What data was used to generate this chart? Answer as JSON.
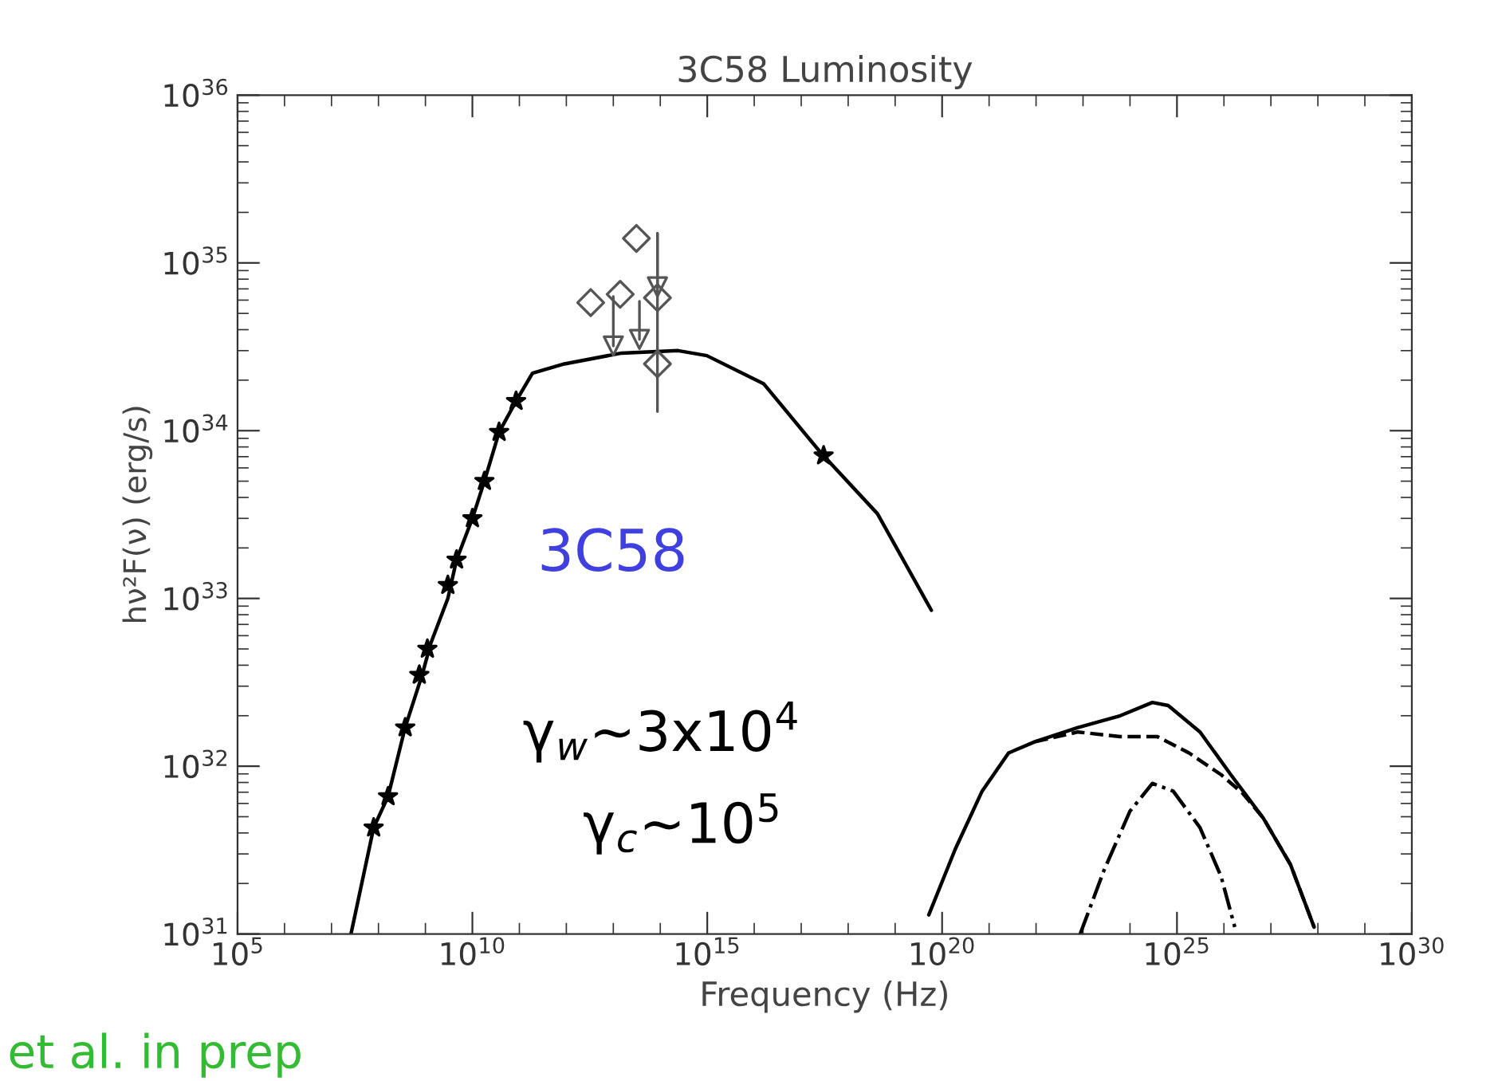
{
  "chart_data": {
    "type": "line",
    "title": "3C58 Luminosity",
    "xlabel": "Frequency (Hz)",
    "ylabel": "hν²F(ν) (erg/s)",
    "log": "xy",
    "grid": false,
    "legend": false,
    "xlim": [
      100000.0,
      1e+30
    ],
    "ylim": [
      1e+31,
      1e+36
    ],
    "xticks": [
      {
        "value": 100000.0,
        "label": "10$^{5}$"
      },
      {
        "value": 10000000000.0,
        "label": "10$^{10}$"
      },
      {
        "value": 1000000000000000.0,
        "label": "10$^{15}$"
      },
      {
        "value": 1e+20,
        "label": "10$^{20}$"
      },
      {
        "value": 1e+25,
        "label": "10$^{25}$"
      },
      {
        "value": 1e+30,
        "label": "10$^{30}$"
      }
    ],
    "yticks": [
      {
        "value": 1e+31,
        "label": "10$^{31}$"
      },
      {
        "value": 1e+32,
        "label": "10$^{32}$"
      },
      {
        "value": 1e+33,
        "label": "10$^{33}$"
      },
      {
        "value": 1e+34,
        "label": "10$^{34}$"
      },
      {
        "value": 1e+35,
        "label": "10$^{35}$"
      },
      {
        "value": 1e+36,
        "label": "10$^{36}$"
      }
    ],
    "series": [
      {
        "color": "#000000",
        "line_style": "solid",
        "marker": "none",
        "x": [
          26000000.0,
          79000000.0,
          160000000.0,
          370000000.0,
          850000000.0,
          1300000000.0,
          3000000000.0,
          4600000000.0,
          10000000000.0,
          18000000000.0,
          37000000000.0,
          85000000000.0,
          190000000000.0,
          910000000000.0,
          15000000000000.0,
          240000000000000.0,
          980000000000000.0,
          1.6e+16,
          2.6e+17,
          4.2e+18,
          5.9e+19
        ],
        "values": [
          1e+31,
          4.3e+31,
          6.6e+31,
          1.7e+32,
          3.5e+32,
          5.4e+32,
          1e+33,
          1.7e+33,
          3e+33,
          5e+33,
          9.8e+33,
          1.5e+34,
          2.2e+34,
          2.5e+34,
          2.9e+34,
          3e+34,
          2.8e+34,
          1.9e+34,
          7.4e+33,
          3.2e+33,
          8.5e+32
        ]
      },
      {
        "color": "#000000",
        "line_style": "solid",
        "marker": "none",
        "x": [
          5.2e+19,
          1.9e+20,
          7.1e+20,
          2.6e+21,
          9.5e+21,
          7.8e+22,
          6.2e+23,
          3e+24,
          6.5e+24,
          3.1e+25,
          1.4e+26,
          6.9e+26,
          2.6e+27,
          8.3e+27
        ],
        "values": [
          1.3e+31,
          3.2e+31,
          7.1e+31,
          1.2e+32,
          1.4e+32,
          1.7e+32,
          2e+32,
          2.4e+32,
          2.3e+32,
          1.6e+32,
          8.9e+31,
          4.9e+31,
          2.6e+31,
          1.1e+31
        ]
      },
      {
        "color": "#000000",
        "line_style": "dashed",
        "marker": "none",
        "x": [
          9.5e+21,
          7.8e+22,
          6.2e+23,
          3.8e+24,
          1.8e+25,
          8.7e+25,
          2.5e+26,
          6.9e+26,
          2.6e+27,
          8.3e+27
        ],
        "values": [
          1.4e+32,
          1.6e+32,
          1.5e+32,
          1.5e+32,
          1.2e+32,
          8.9e+31,
          6.9e+31,
          4.9e+31,
          2.6e+31,
          1.1e+31
        ]
      },
      {
        "color": "#000000",
        "line_style": "dashdot",
        "marker": "none",
        "x": [
          8.7e+22,
          2.8e+23,
          1e+24,
          3e+24,
          8.3e+24,
          3.1e+25,
          8.7e+25,
          1.7e+26
        ],
        "values": [
          1e+31,
          2.4e+31,
          5.4e+31,
          7.9e+31,
          7.1e+31,
          4.3e+31,
          2.2e+31,
          1.1e+31
        ]
      },
      {
        "type": "scatter",
        "color": "#000000",
        "marker": "star",
        "x": [
          79000000.0,
          160000000.0,
          370000000.0,
          740000000.0,
          1100000000.0,
          3000000000.0,
          4600000000.0,
          10000000000.0,
          18000000000.0,
          37000000000.0,
          85000000000.0,
          3e+17
        ],
        "values": [
          4.3e+31,
          6.6e+31,
          1.7e+32,
          3.5e+32,
          5e+32,
          1.2e+33,
          1.7e+33,
          3e+33,
          5e+33,
          9.8e+33,
          1.5e+34,
          7.1e+33
        ]
      },
      {
        "type": "scatter",
        "color": "#555555",
        "marker": "diamond",
        "x": [
          3300000000000.0,
          14000000000000.0,
          31000000000000.0,
          87000000000000.0,
          87000000000000.0
        ],
        "values": [
          5.8e+34,
          6.5e+34,
          1.4e+35,
          6.2e+34,
          2.5e+34
        ],
        "errors": [
          null,
          null,
          null,
          null,
          [
            1.3e+34,
            1.5e+35
          ]
        ]
      },
      {
        "type": "scatter",
        "color": "#555555",
        "marker": "triangle",
        "x": [
          10000000000000.0,
          36000000000000.0,
          87000000000000.0
        ],
        "values": [
          3.2e+34,
          3.5e+34,
          7.2e+34
        ],
        "errors": [
          [
            3.2e+34,
            6.3e+34
          ],
          [
            3.5e+34,
            5.9e+34
          ],
          [
            7.2e+34,
            1.5e+35
          ]
        ]
      }
    ],
    "annotations": [
      "3C58",
      "γ$_{w}$~3x10$^{4}$",
      "γ$_{c}$~10$^{5}$",
      "et al. in prep"
    ]
  }
}
